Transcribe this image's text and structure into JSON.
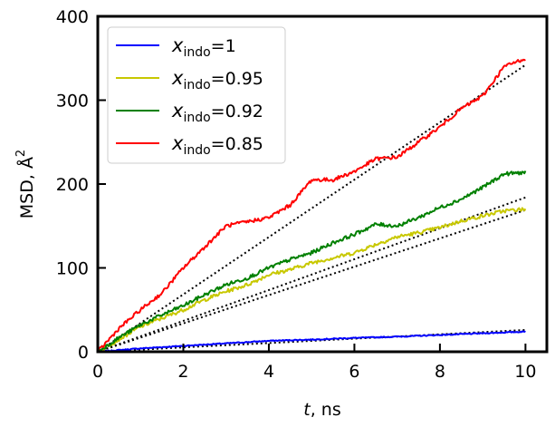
{
  "chart_data": {
    "type": "line",
    "xlabel_italic": "t",
    "xlabel_rest": ", ns",
    "ylabel_main": "MSD, Å",
    "ylabel_sup": "2",
    "xlim": [
      0,
      10.5
    ],
    "ylim": [
      0,
      400
    ],
    "x_ticks": [
      "0",
      "2",
      "4",
      "6",
      "8",
      "10"
    ],
    "y_ticks": [
      "0",
      "100",
      "200",
      "300",
      "400"
    ],
    "legend_position": "top-left",
    "grid": false,
    "series": [
      {
        "name_var": "x",
        "name_sub": "indo",
        "name_value": "=1",
        "color": "#0000ff",
        "x": [
          0,
          0.5,
          1,
          1.5,
          2,
          2.5,
          3,
          3.5,
          4,
          4.5,
          5,
          5.5,
          6,
          6.5,
          7,
          7.5,
          8,
          8.5,
          9,
          9.5,
          10
        ],
        "y": [
          0,
          2,
          4,
          5.5,
          7,
          8.5,
          10,
          11.5,
          13,
          13.8,
          14.5,
          15.5,
          16.5,
          17.2,
          18,
          19,
          20,
          21,
          22,
          23,
          24
        ],
        "fit_y_at_10": 26
      },
      {
        "name_var": "x",
        "name_sub": "indo",
        "name_value": "=0.95",
        "color": "#c8c800",
        "x": [
          0,
          0.5,
          1,
          1.5,
          2,
          2.5,
          3,
          3.5,
          4,
          4.5,
          5,
          5.5,
          6,
          6.5,
          7,
          7.5,
          8,
          8.5,
          9,
          9.5,
          10
        ],
        "y": [
          0,
          15,
          30,
          40,
          50,
          62,
          72,
          80,
          92,
          98,
          106,
          112,
          118,
          128,
          137,
          142,
          148,
          156,
          162,
          168,
          170
        ],
        "fit_y_at_10": 184
      },
      {
        "name_var": "x",
        "name_sub": "indo",
        "name_value": "=0.92",
        "color": "#008000",
        "x": [
          0,
          0.5,
          1,
          1.5,
          2,
          2.5,
          3,
          3.5,
          4,
          4.5,
          5,
          5.5,
          6,
          6.5,
          7,
          7.5,
          8,
          8.5,
          9,
          9.5,
          10
        ],
        "y": [
          0,
          17,
          32,
          44,
          55,
          68,
          80,
          88,
          100,
          110,
          118,
          130,
          140,
          152,
          150,
          160,
          172,
          182,
          196,
          212,
          214
        ],
        "fit_y_at_10": 169
      },
      {
        "name_var": "x",
        "name_sub": "indo",
        "name_value": "=0.85",
        "color": "#ff0000",
        "x": [
          0,
          0.5,
          1,
          1.5,
          2,
          2.5,
          3,
          3.5,
          4,
          4.5,
          5,
          5.5,
          6,
          6.5,
          7,
          7.5,
          8,
          8.5,
          9,
          9.5,
          10
        ],
        "y": [
          0,
          28,
          50,
          70,
          100,
          125,
          150,
          155,
          160,
          175,
          205,
          205,
          215,
          230,
          232,
          250,
          268,
          290,
          305,
          340,
          350
        ],
        "fit_y_at_10": 342
      }
    ]
  }
}
